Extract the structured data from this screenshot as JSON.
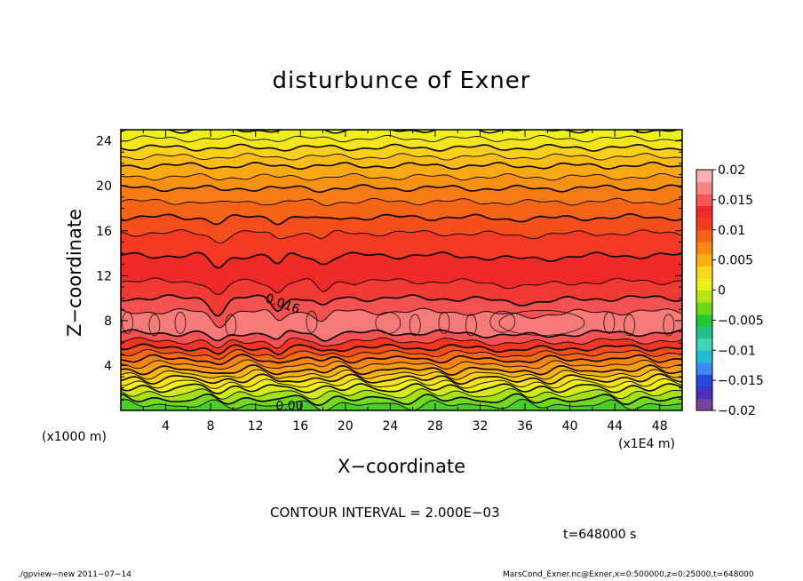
{
  "title": "disturbunce of Exner",
  "xlabel": "X−coordinate",
  "ylabel": "Z−coordinate",
  "x_unit_left": "(x1000 m)",
  "x_unit_right": "(x1E4 m)",
  "contour_interval_text": "CONTOUR INTERVAL = 2.000E−03",
  "time_text": "t=648000 s",
  "footer_left": "./gpview−new   2011−07−14",
  "footer_right": "MarsCond_Exner.nc@Exner,x=0:500000,z=0:25000,t=648000",
  "chart_data": {
    "type": "heatmap",
    "title": "disturbunce of Exner",
    "xlabel": "X-coordinate",
    "ylabel": "Z-coordinate",
    "xlim": [
      0,
      50
    ],
    "ylim": [
      0,
      25
    ],
    "xticks": [
      4,
      8,
      12,
      16,
      20,
      24,
      28,
      32,
      36,
      40,
      44,
      48
    ],
    "yticks": [
      4,
      8,
      12,
      16,
      20,
      24
    ],
    "colorbar": {
      "range": [
        -0.02,
        0.02
      ],
      "labels": [
        "0.02",
        "0.015",
        "0.01",
        "0.005",
        "0",
        "-0.005",
        "-0.01",
        "-0.015",
        "-0.02"
      ],
      "colors": [
        "#7b3fa0",
        "#4a2fc0",
        "#2848e0",
        "#3c8cf0",
        "#22bcd8",
        "#3fd6b4",
        "#22c08a",
        "#24c832",
        "#6ed81a",
        "#b6e414",
        "#ecf018",
        "#fad81e",
        "#fab014",
        "#f88a14",
        "#f66418",
        "#f43c22",
        "#f02a28",
        "#f45858",
        "#f88484",
        "#fab0b0"
      ]
    },
    "contour_labels": [
      "0.016",
      "0.00"
    ],
    "contour_interval": 0.002,
    "time": "t=648000 s",
    "layers": [
      {
        "z_top": 0.5,
        "value": 0.001,
        "color": "#4ccc2a"
      },
      {
        "z_top": 1.0,
        "value": 0.002,
        "color": "#72d820"
      },
      {
        "z_top": 1.5,
        "value": 0.003,
        "color": "#a4e016"
      },
      {
        "z_top": 2.0,
        "value": 0.004,
        "color": "#d4ea14"
      },
      {
        "z_top": 2.4,
        "value": 0.005,
        "color": "#f0f018"
      },
      {
        "z_top": 2.8,
        "value": 0.006,
        "color": "#fae01c"
      },
      {
        "z_top": 3.2,
        "value": 0.007,
        "color": "#facc1a"
      },
      {
        "z_top": 3.6,
        "value": 0.008,
        "color": "#fab414"
      },
      {
        "z_top": 4.1,
        "value": 0.009,
        "color": "#f89c14"
      },
      {
        "z_top": 4.6,
        "value": 0.01,
        "color": "#f88414"
      },
      {
        "z_top": 5.1,
        "value": 0.011,
        "color": "#f66a16"
      },
      {
        "z_top": 5.6,
        "value": 0.012,
        "color": "#f44e1c"
      },
      {
        "z_top": 6.2,
        "value": 0.013,
        "color": "#f23622"
      },
      {
        "z_top": 6.9,
        "value": 0.015,
        "color": "#f45252"
      },
      {
        "z_top": 8.8,
        "value": 0.017,
        "color": "#f67a78"
      },
      {
        "z_top": 10.0,
        "value": 0.016,
        "color": "#f45252"
      },
      {
        "z_top": 11.5,
        "value": 0.015,
        "color": "#f23a34"
      },
      {
        "z_top": 13.8,
        "value": 0.014,
        "color": "#f02a28"
      },
      {
        "z_top": 15.8,
        "value": 0.013,
        "color": "#f23a24"
      },
      {
        "z_top": 17.2,
        "value": 0.012,
        "color": "#f44e1c"
      },
      {
        "z_top": 18.6,
        "value": 0.011,
        "color": "#f66418"
      },
      {
        "z_top": 19.8,
        "value": 0.01,
        "color": "#f87c16"
      },
      {
        "z_top": 20.8,
        "value": 0.009,
        "color": "#f89214"
      },
      {
        "z_top": 21.8,
        "value": 0.008,
        "color": "#faa814"
      },
      {
        "z_top": 22.6,
        "value": 0.007,
        "color": "#fabc18"
      },
      {
        "z_top": 23.4,
        "value": 0.006,
        "color": "#fad01c"
      },
      {
        "z_top": 24.2,
        "value": 0.005,
        "color": "#f6e41c"
      },
      {
        "z_top": 25.0,
        "value": 0.004,
        "color": "#eef01c"
      }
    ]
  }
}
